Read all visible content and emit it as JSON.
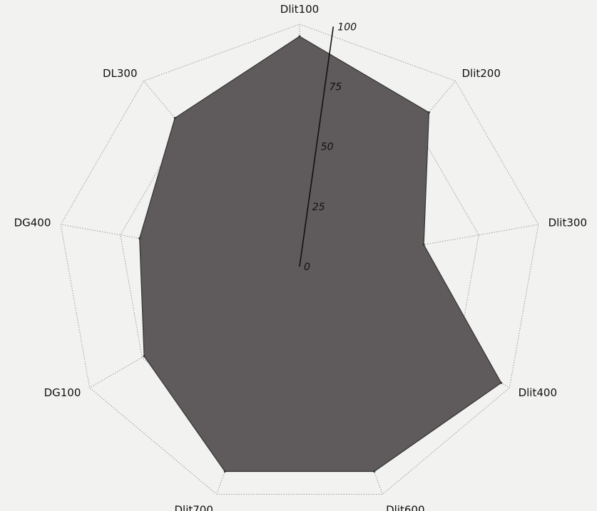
{
  "chart_data": {
    "type": "radar",
    "title": "",
    "axes": [
      "Dlit100",
      "Dlit200",
      "Dlit300",
      "Dlit400",
      "Dlit600",
      "Dlit700",
      "DG100",
      "DG400",
      "DL300"
    ],
    "series": [
      {
        "values": [
          95,
          83,
          52,
          96,
          90,
          90,
          74,
          67,
          80
        ]
      }
    ],
    "radial_range": [
      0,
      100
    ],
    "radial_ticks": [
      0,
      25,
      50,
      75,
      100
    ],
    "radial_tick_labels": [
      "0",
      "25",
      "50",
      "75",
      "100"
    ],
    "grid": true,
    "legend": "none",
    "colors": {
      "fill": "#5a5557",
      "stroke": "#333333",
      "grid": "#9a9a9a",
      "background": "#f2f2f0"
    }
  }
}
